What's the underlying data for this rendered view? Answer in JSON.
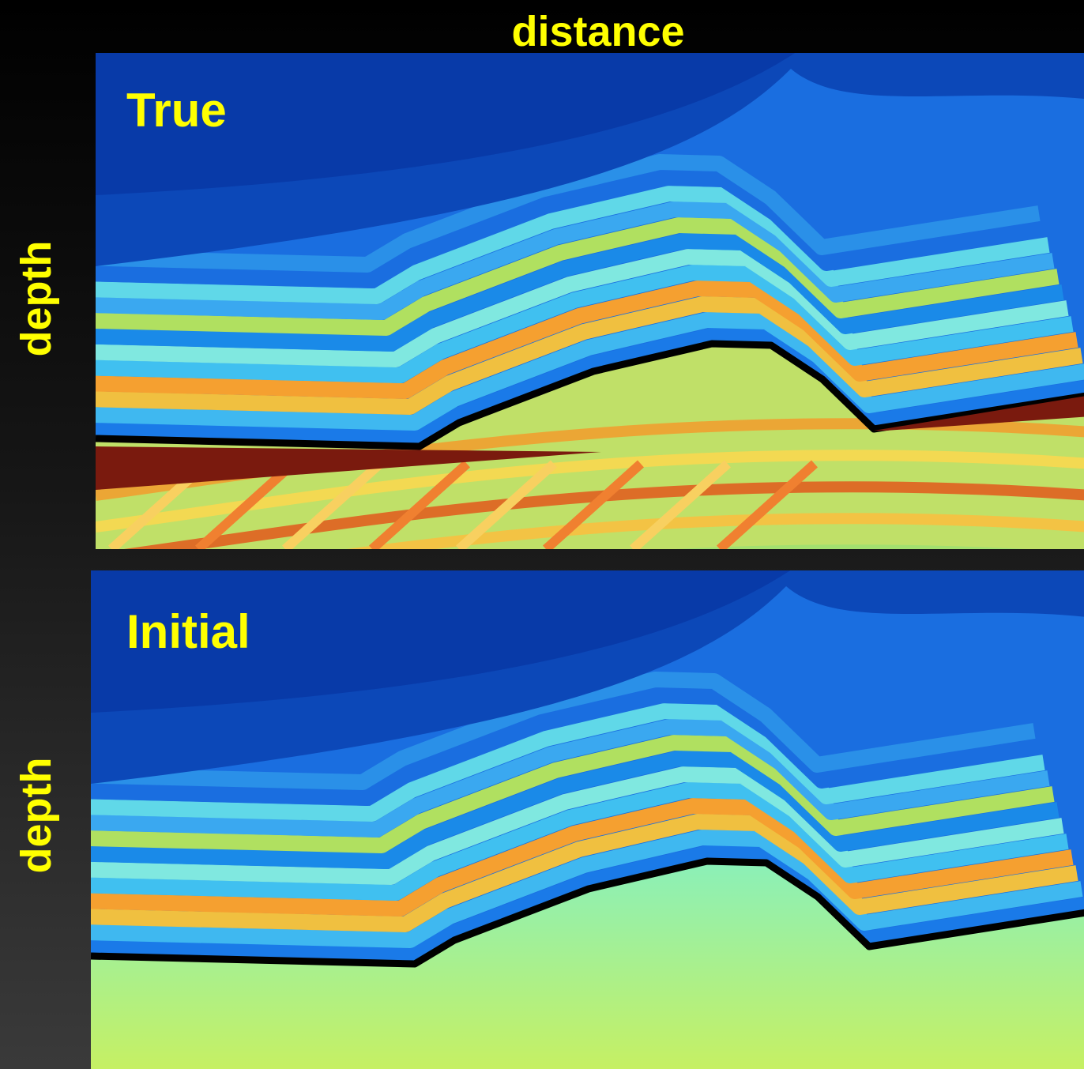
{
  "header": {
    "title": "distance"
  },
  "panels": [
    {
      "label": "True",
      "axis_label": "depth"
    },
    {
      "label": "Initial",
      "axis_label": "depth"
    }
  ]
}
